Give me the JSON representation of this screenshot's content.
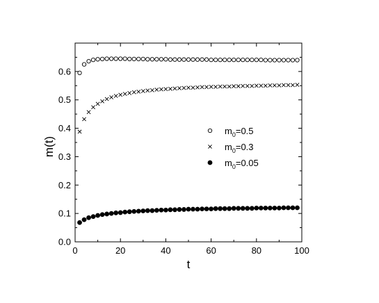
{
  "chart_data": {
    "type": "scatter",
    "xlabel": "t",
    "ylabel": "m(t)",
    "xlim": [
      0,
      100
    ],
    "ylim": [
      0.0,
      0.7
    ],
    "x_ticks": [
      "0",
      "20",
      "40",
      "60",
      "80",
      "100"
    ],
    "y_ticks": [
      "0.0",
      "0.1",
      "0.2",
      "0.3",
      "0.4",
      "0.5",
      "0.6"
    ],
    "x_tick_values": [
      0,
      20,
      40,
      60,
      80,
      100
    ],
    "y_tick_values": [
      0.0,
      0.1,
      0.2,
      0.3,
      0.4,
      0.5,
      0.6
    ],
    "grid": false,
    "legend_position": "center-right",
    "x": [
      2,
      4,
      6,
      8,
      10,
      12,
      14,
      16,
      18,
      20,
      22,
      24,
      26,
      28,
      30,
      32,
      34,
      36,
      38,
      40,
      42,
      44,
      46,
      48,
      50,
      52,
      54,
      56,
      58,
      60,
      62,
      64,
      66,
      68,
      70,
      72,
      74,
      76,
      78,
      80,
      82,
      84,
      86,
      88,
      90,
      92,
      94,
      96,
      98
    ],
    "series": [
      {
        "name_main": "m",
        "name_sub": "0",
        "name_rest": "=0.5",
        "marker": "circle-open",
        "values": [
          0.595,
          0.625,
          0.636,
          0.641,
          0.643,
          0.644,
          0.645,
          0.645,
          0.645,
          0.645,
          0.645,
          0.644,
          0.644,
          0.644,
          0.644,
          0.643,
          0.643,
          0.643,
          0.643,
          0.643,
          0.642,
          0.642,
          0.642,
          0.642,
          0.642,
          0.642,
          0.642,
          0.642,
          0.642,
          0.641,
          0.641,
          0.641,
          0.641,
          0.641,
          0.641,
          0.641,
          0.641,
          0.641,
          0.641,
          0.641,
          0.641,
          0.64,
          0.64,
          0.64,
          0.64,
          0.64,
          0.64,
          0.64,
          0.64
        ]
      },
      {
        "name_main": "m",
        "name_sub": "0",
        "name_rest": "=0.3",
        "marker": "x",
        "values": [
          0.388,
          0.432,
          0.457,
          0.474,
          0.486,
          0.495,
          0.503,
          0.509,
          0.514,
          0.518,
          0.521,
          0.524,
          0.527,
          0.529,
          0.531,
          0.533,
          0.534,
          0.536,
          0.537,
          0.538,
          0.539,
          0.54,
          0.541,
          0.542,
          0.543,
          0.543,
          0.544,
          0.545,
          0.545,
          0.546,
          0.546,
          0.547,
          0.547,
          0.547,
          0.548,
          0.548,
          0.549,
          0.549,
          0.549,
          0.55,
          0.55,
          0.55,
          0.551,
          0.551,
          0.551,
          0.552,
          0.552,
          0.552,
          0.553
        ]
      },
      {
        "name_main": "m",
        "name_sub": "0",
        "name_rest": "=0.05",
        "marker": "circle-filled",
        "values": [
          0.068,
          0.078,
          0.085,
          0.089,
          0.093,
          0.096,
          0.098,
          0.1,
          0.102,
          0.103,
          0.105,
          0.106,
          0.107,
          0.108,
          0.109,
          0.11,
          0.11,
          0.111,
          0.112,
          0.112,
          0.113,
          0.113,
          0.114,
          0.114,
          0.115,
          0.115,
          0.115,
          0.116,
          0.116,
          0.116,
          0.117,
          0.117,
          0.117,
          0.117,
          0.118,
          0.118,
          0.118,
          0.118,
          0.118,
          0.119,
          0.119,
          0.119,
          0.119,
          0.119,
          0.119,
          0.12,
          0.12,
          0.12,
          0.12
        ]
      }
    ]
  }
}
